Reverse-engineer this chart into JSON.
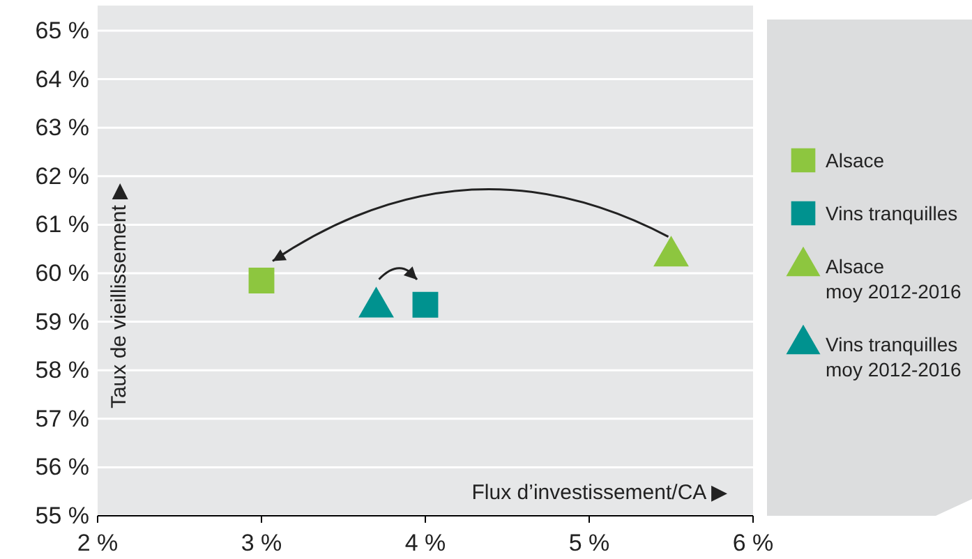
{
  "chart_data": {
    "type": "scatter",
    "xlabel": "Flux d’investissement/CA ▶",
    "ylabel": "Taux de vieillissement ▶",
    "xlim": [
      2,
      6
    ],
    "xticks": [
      {
        "value": 2,
        "label": "2 %"
      },
      {
        "value": 3,
        "label": "3 %"
      },
      {
        "value": 4,
        "label": "4 %"
      },
      {
        "value": 5,
        "label": "5 %"
      },
      {
        "value": 6,
        "label": "6 %"
      }
    ],
    "ylim": [
      55,
      65
    ],
    "yticks": [
      {
        "value": 55,
        "label": "55 %"
      },
      {
        "value": 56,
        "label": "56 %"
      },
      {
        "value": 57,
        "label": "57 %"
      },
      {
        "value": 58,
        "label": "58 %"
      },
      {
        "value": 59,
        "label": "59 %"
      },
      {
        "value": 60,
        "label": "60 %"
      },
      {
        "value": 61,
        "label": "61 %"
      },
      {
        "value": 62,
        "label": "62 %"
      },
      {
        "value": 63,
        "label": "63 %"
      },
      {
        "value": 64,
        "label": "64 %"
      },
      {
        "value": 65,
        "label": "65 %"
      }
    ],
    "grid": "y",
    "legend": "right",
    "series": [
      {
        "name": "Alsace",
        "color": "#8dc63f",
        "marker": "square",
        "x": [
          3.0
        ],
        "values": [
          59.85
        ]
      },
      {
        "name": "Vins tranquilles",
        "color": "#00928f",
        "marker": "square",
        "x": [
          4.0
        ],
        "values": [
          59.35
        ]
      },
      {
        "name": "Alsace\nmoy 2012-2016",
        "color": "#8dc63f",
        "marker": "triangle",
        "x": [
          5.5
        ],
        "values": [
          60.35
        ]
      },
      {
        "name": "Vins tranquilles\nmoy 2012-2016",
        "color": "#00928f",
        "marker": "triangle",
        "x": [
          3.7
        ],
        "values": [
          59.3
        ]
      }
    ]
  }
}
